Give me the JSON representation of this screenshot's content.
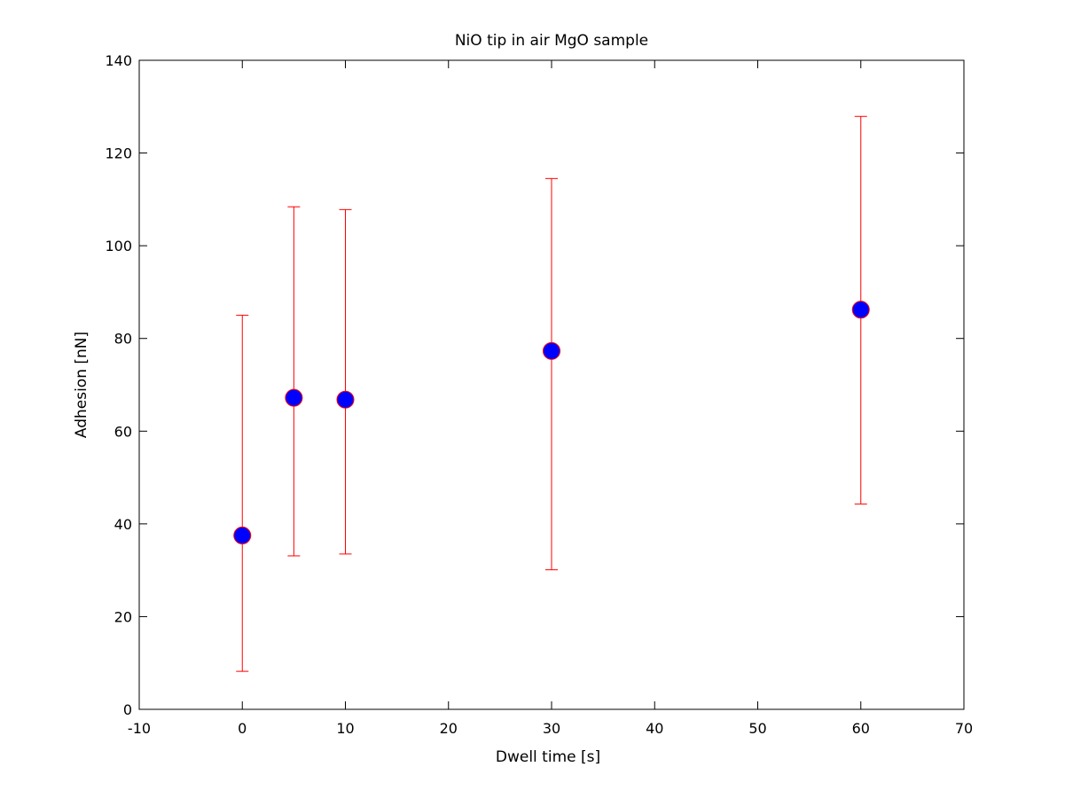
{
  "chart_data": {
    "type": "scatter",
    "title": "NiO tip in air MgO sample",
    "xlabel": "Dwell time [s]",
    "ylabel": "Adhesion [nN]",
    "xlim": [
      -10,
      70
    ],
    "ylim": [
      0,
      140
    ],
    "xticks": [
      -10,
      0,
      10,
      20,
      30,
      40,
      50,
      60,
      70
    ],
    "yticks": [
      0,
      20,
      40,
      60,
      80,
      100,
      120,
      140
    ],
    "xtick_labels": [
      "-10",
      "0",
      "10",
      "20",
      "30",
      "40",
      "50",
      "60",
      "70"
    ],
    "ytick_labels": [
      "0",
      "20",
      "40",
      "60",
      "80",
      "100",
      "120",
      "140"
    ],
    "grid": false,
    "series": [
      {
        "x": [
          0,
          5,
          10,
          30,
          60
        ],
        "y": [
          37.5,
          67.2,
          66.8,
          77.3,
          86.2
        ],
        "err_lower": [
          8.2,
          33.1,
          33.5,
          30.1,
          44.3
        ],
        "err_upper": [
          85.0,
          108.4,
          107.8,
          114.5,
          127.9
        ],
        "marker_color": "#0000ff",
        "marker_edge_color": "#ff0000",
        "errorbar_color": "#ff0000"
      }
    ]
  }
}
